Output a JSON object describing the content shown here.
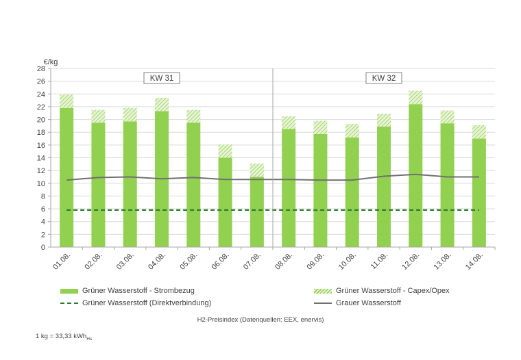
{
  "chart_data": {
    "type": "bar",
    "unit_label": "€/kg",
    "ylim": [
      0,
      28
    ],
    "yticks": [
      0,
      2,
      4,
      6,
      8,
      10,
      12,
      14,
      16,
      18,
      20,
      22,
      24,
      26,
      28
    ],
    "grid": true,
    "categories": [
      "01.08.",
      "02.08.",
      "03.08.",
      "04.08.",
      "05.08.",
      "06.08.",
      "07.08.",
      "08.08.",
      "09.08.",
      "10.08.",
      "11.08.",
      "12.08.",
      "13.08.",
      "14.08."
    ],
    "week_labels": [
      {
        "label": "KW 31",
        "from": 0,
        "to": 6
      },
      {
        "label": "KW 32",
        "from": 7,
        "to": 13
      }
    ],
    "series": [
      {
        "name": "Grüner Wasserstoff - Strombezug",
        "kind": "stacked-bar",
        "color": "#92d050",
        "values": [
          21.8,
          19.5,
          19.7,
          21.3,
          19.5,
          14.0,
          11.0,
          18.5,
          17.7,
          17.2,
          18.9,
          22.4,
          19.4,
          17.0
        ]
      },
      {
        "name": "Grüner Wasserstoff - Capex/Opex",
        "kind": "stacked-bar-hatched",
        "color": "#92d050",
        "values": [
          2.1,
          2.0,
          2.1,
          2.1,
          2.0,
          2.1,
          2.1,
          2.0,
          2.1,
          2.1,
          2.0,
          2.1,
          2.0,
          2.1
        ]
      },
      {
        "name": "Grüner Wasserstoff (Direktverbindung)",
        "kind": "dashed-line",
        "color": "#2e7d32",
        "values": [
          5.8,
          5.8,
          5.8,
          5.8,
          5.8,
          5.8,
          5.8,
          5.8,
          5.8,
          5.8,
          5.8,
          5.8,
          5.8,
          5.8
        ]
      },
      {
        "name": "Grauer Wasserstoff",
        "kind": "line",
        "color": "#707070",
        "values": [
          10.5,
          10.9,
          11.0,
          10.7,
          10.9,
          10.6,
          10.6,
          10.6,
          10.5,
          10.5,
          11.1,
          11.4,
          11.0,
          11.0
        ]
      }
    ]
  },
  "caption": {
    "source": "H2-Preisindex (Datenquellen: EEX, enervis)",
    "footnote_main": "1 kg = 33,33 kWh",
    "footnote_sub": "Hs"
  }
}
